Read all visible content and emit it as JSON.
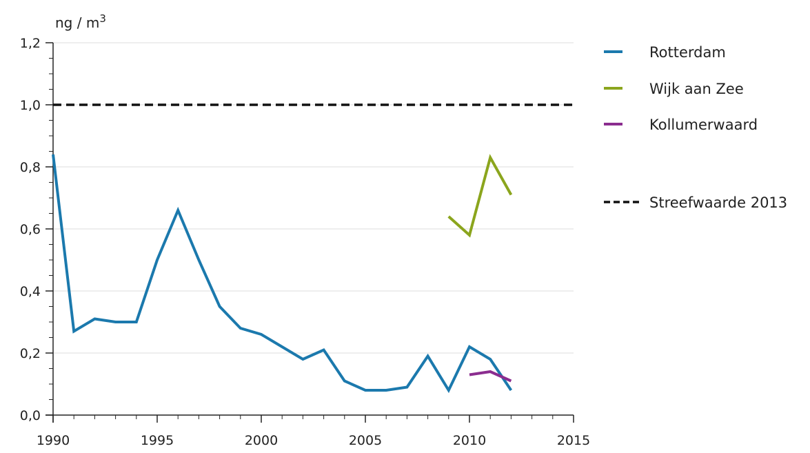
{
  "chart_data": {
    "type": "line",
    "title": "",
    "unit_label": "ng / m3",
    "unit_base": "ng / m",
    "unit_exponent": "3",
    "xlim": [
      1990,
      2015
    ],
    "ylim": [
      0,
      1.2
    ],
    "x_ticks": [
      "1990",
      "1995",
      "2000",
      "2005",
      "2010",
      "2015"
    ],
    "y_ticks": [
      "0,0",
      "0,2",
      "0,4",
      "0,6",
      "0,8",
      "1,0",
      "1,2"
    ],
    "grid": true,
    "legend_position": "right",
    "series": [
      {
        "name": "Rotterdam",
        "color": "#1b79ad",
        "x": [
          1990,
          1991,
          1992,
          1993,
          1994,
          1995,
          1996,
          1997,
          1998,
          1999,
          2000,
          2001,
          2002,
          2003,
          2004,
          2005,
          2006,
          2007,
          2008,
          2009,
          2010,
          2011,
          2012
        ],
        "y": [
          0.84,
          0.27,
          0.31,
          0.3,
          0.3,
          0.5,
          0.66,
          0.5,
          0.35,
          0.28,
          0.26,
          0.22,
          0.18,
          0.21,
          0.11,
          0.08,
          0.08,
          0.09,
          0.19,
          0.08,
          0.22,
          0.18,
          0.08
        ]
      },
      {
        "name": "Wijk aan Zee",
        "color": "#8ba51d",
        "x": [
          2009,
          2010,
          2011,
          2012
        ],
        "y": [
          0.64,
          0.58,
          0.83,
          0.71
        ]
      },
      {
        "name": "Kollumerwaard",
        "color": "#8b2d8f",
        "x": [
          2010,
          2011,
          2012
        ],
        "y": [
          0.13,
          0.14,
          0.11
        ]
      }
    ],
    "reference_line": {
      "name": "Streefwaarde 2013",
      "color": "#111111",
      "y": 1.0
    }
  }
}
